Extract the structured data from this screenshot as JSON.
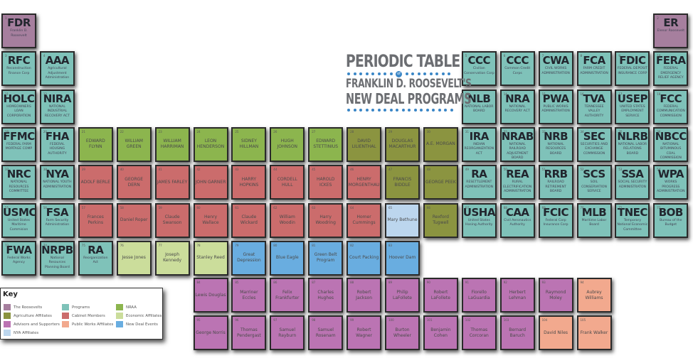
{
  "title": {
    "line1": "PERIODIC TABLE",
    "of": "of",
    "line2": "FRANKLIN D. ROOSEVELT'S",
    "line3": "NEW DEAL PROGRAMS"
  },
  "colors": {
    "roosevelts": "#a67f9e",
    "programs": "#7fc2b9",
    "nraa": "#8cb54e",
    "agriculture": "#8b9440",
    "cabinet": "#cb6c6c",
    "economic": "#cbdd9b",
    "advisors": "#bb74b3",
    "public_works": "#f2a98e",
    "events": "#69ade0",
    "nya": "#bcd6ee"
  },
  "key": {
    "title": "Key",
    "items": [
      {
        "label": "The Roosevelts",
        "color": "#a67f9e"
      },
      {
        "label": "Programs",
        "color": "#7fc2b9"
      },
      {
        "label": "NRAA",
        "color": "#8cb54e"
      },
      {
        "label": "Agriculture Affiliates",
        "color": "#8b9440"
      },
      {
        "label": "Cabinet Members",
        "color": "#cb6c6c"
      },
      {
        "label": "Economic Affiliates",
        "color": "#cbdd9b"
      },
      {
        "label": "Advisors and Supporters",
        "color": "#bb74b3"
      },
      {
        "label": "Public Works Affiliates",
        "color": "#f2a98e"
      },
      {
        "label": "New Deal Events",
        "color": "#69ade0"
      },
      {
        "label": "NYA Affiliates",
        "color": "#bcd6ee"
      }
    ]
  },
  "elements": [
    {
      "n": "1",
      "sym": "FDR",
      "sub": "Franklin D. Roosevelt",
      "cat": "roosevelts",
      "col": 0,
      "row": 0
    },
    {
      "n": "2",
      "sym": "ER",
      "sub": "Elenor Roosevelt",
      "cat": "roosevelts",
      "col": 17,
      "row": 0
    },
    {
      "n": "3",
      "sym": "RFC",
      "sub": "Reconstruction Finance Corp",
      "cat": "programs",
      "col": 0,
      "row": 1
    },
    {
      "n": "4",
      "sym": "AAA",
      "sub": "Agricultural Adjustment Administration",
      "cat": "programs",
      "col": 1,
      "row": 1
    },
    {
      "n": "5",
      "sym": "CCC",
      "sub": "Civilian Conservation Corp",
      "cat": "programs",
      "col": 12,
      "row": 1
    },
    {
      "n": "6",
      "sym": "CCC",
      "sub": "Common Credit Corps",
      "cat": "programs",
      "col": 13,
      "row": 1
    },
    {
      "n": "7",
      "sym": "CWA",
      "sub": "CIVIL WORKS ADMINISTRATION",
      "cat": "programs",
      "col": 14,
      "row": 1
    },
    {
      "n": "8",
      "sym": "FCA",
      "sub": "FARM CREDIT ADMINISTRATION",
      "cat": "programs",
      "col": 15,
      "row": 1
    },
    {
      "n": "9",
      "sym": "FDIC",
      "sub": "FEDERAL DEPOSIT INSURANCE CORP",
      "cat": "programs",
      "col": 16,
      "row": 1
    },
    {
      "n": "10",
      "sym": "FERA",
      "sub": "FEDERAL EMERGENCY RELIEF AGENCY",
      "cat": "programs",
      "col": 17,
      "row": 1
    },
    {
      "n": "11",
      "sym": "HOLC",
      "sub": "HOMEOWNERS LOAN CORPORATION",
      "cat": "programs",
      "col": 0,
      "row": 2
    },
    {
      "n": "12",
      "sym": "NIRA",
      "sub": "NATIONAL INDUSTRIAL RECOVERY ACT",
      "cat": "programs",
      "col": 1,
      "row": 2
    },
    {
      "n": "13",
      "sym": "NLB",
      "sub": "NATIONAL LABOR BOARD",
      "cat": "programs",
      "col": 12,
      "row": 2
    },
    {
      "n": "14",
      "sym": "NRA",
      "sub": "NATIONAL RECOVERY ACT",
      "cat": "programs",
      "col": 13,
      "row": 2
    },
    {
      "n": "15",
      "sym": "PWA",
      "sub": "PUBLIC WORKS ADMINISTRATION",
      "cat": "programs",
      "col": 14,
      "row": 2
    },
    {
      "n": "16",
      "sym": "TVA",
      "sub": "TENNESSEE VALLEY AUTHORITY",
      "cat": "programs",
      "col": 15,
      "row": 2
    },
    {
      "n": "17",
      "sym": "USEP",
      "sub": "UNITED STATES EMPLOYMENT SERVICE",
      "cat": "programs",
      "col": 16,
      "row": 2
    },
    {
      "n": "18",
      "sym": "FCC",
      "sub": "FEDERAL COMMUNICATION COMMISSION",
      "cat": "programs",
      "col": 17,
      "row": 2
    },
    {
      "n": "19",
      "sym": "FFMC",
      "sub": "FEDERAL FARM MORTAGE COMP",
      "cat": "programs",
      "col": 0,
      "row": 3
    },
    {
      "n": "20",
      "sym": "FHA",
      "sub": "FEDERAL HOUSING AUTHORITY",
      "cat": "programs",
      "col": 1,
      "row": 3
    },
    {
      "n": "21",
      "name": "EDWARD FLYNN",
      "cat": "nraa",
      "col": 2,
      "row": 3
    },
    {
      "n": "22",
      "name": "WILLIAM GREEN",
      "cat": "nraa",
      "col": 3,
      "row": 3
    },
    {
      "n": "23",
      "name": "WILLIAM HARRIMAN",
      "cat": "nraa",
      "col": 4,
      "row": 3
    },
    {
      "n": "24",
      "name": "LEON HENDERSON",
      "cat": "nraa",
      "col": 5,
      "row": 3
    },
    {
      "n": "25",
      "name": "SIDNEY HILLMAN",
      "cat": "nraa",
      "col": 6,
      "row": 3
    },
    {
      "n": "26",
      "name": "HUGH JOHNSON",
      "cat": "nraa",
      "col": 7,
      "row": 3
    },
    {
      "n": "27",
      "name": "EDWARD STETTINIUS",
      "cat": "nraa",
      "col": 8,
      "row": 3
    },
    {
      "n": "28",
      "name": "DAVID LILIENTHAL",
      "cat": "agriculture",
      "col": 9,
      "row": 3
    },
    {
      "n": "29",
      "name": "DOUGLAS MACARTHUR",
      "cat": "agriculture",
      "col": 10,
      "row": 3
    },
    {
      "n": "30",
      "name": "A.E. MORGAN",
      "cat": "agriculture",
      "col": 11,
      "row": 3
    },
    {
      "n": "31",
      "sym": "IRA",
      "sub": "INDIAN REORGANIZATION ACT",
      "cat": "programs",
      "col": 12,
      "row": 3
    },
    {
      "n": "32",
      "sym": "NRAB",
      "sub": "NATIONAL RAILROAD ADJUSTMENT BOARD",
      "cat": "programs",
      "col": 13,
      "row": 3
    },
    {
      "n": "33",
      "sym": "NRB",
      "sub": "NATIONAL RESOURCES BOARD",
      "cat": "programs",
      "col": 14,
      "row": 3
    },
    {
      "n": "34",
      "sym": "SEC",
      "sub": "SECURITIES AND EXCHANGE COMMISSION",
      "cat": "programs",
      "col": 15,
      "row": 3
    },
    {
      "n": "35",
      "sym": "NLRB",
      "sub": "NATIONAL LABOR RELATIONS BOARD",
      "cat": "programs",
      "col": 16,
      "row": 3
    },
    {
      "n": "36",
      "sym": "NBCC",
      "sub": "NATIONAL BITUMINOUS COAL COMMISSION",
      "cat": "programs",
      "col": 17,
      "row": 3
    },
    {
      "n": "37",
      "sym": "NRC",
      "sub": "NATIONAL RESOURCES COMMITTEE",
      "cat": "programs",
      "col": 0,
      "row": 4
    },
    {
      "n": "38",
      "sym": "NYA",
      "sub": "NATIONAL YOUTH ADMINISTRATION",
      "cat": "programs",
      "col": 1,
      "row": 4
    },
    {
      "n": "39",
      "name": "ADOLF BERLE",
      "cat": "cabinet",
      "col": 2,
      "row": 4
    },
    {
      "n": "40",
      "name": "GEORGE DERN",
      "cat": "cabinet",
      "col": 3,
      "row": 4
    },
    {
      "n": "41",
      "name": "JAMES FARLEY",
      "cat": "cabinet",
      "col": 4,
      "row": 4
    },
    {
      "n": "42",
      "name": "JOHN GARNER",
      "cat": "cabinet",
      "col": 5,
      "row": 4
    },
    {
      "n": "43",
      "name": "HARRY HOPKINS",
      "cat": "cabinet",
      "col": 6,
      "row": 4
    },
    {
      "n": "44",
      "name": "CORDELL HULL",
      "cat": "cabinet",
      "col": 7,
      "row": 4
    },
    {
      "n": "45",
      "name": "HAROLD ICKES",
      "cat": "cabinet",
      "col": 8,
      "row": 4
    },
    {
      "n": "46",
      "name": "HENRY MORGENTHAU",
      "cat": "cabinet",
      "col": 9,
      "row": 4
    },
    {
      "n": "47",
      "name": "FRANCIS BIDDLE",
      "cat": "agriculture",
      "col": 10,
      "row": 4
    },
    {
      "n": "48",
      "name": "GEORGE PEEK",
      "cat": "agriculture",
      "col": 11,
      "row": 4
    },
    {
      "n": "49",
      "sym": "RA",
      "sub": "RESETTLEMENT ADMINISTRATION",
      "cat": "programs",
      "col": 12,
      "row": 4
    },
    {
      "n": "50",
      "sym": "REA",
      "sub": "RURAL ELECTRIFICATION ADMINISTRATON",
      "cat": "programs",
      "col": 13,
      "row": 4
    },
    {
      "n": "51",
      "sym": "RRB",
      "sub": "RAILROAD RETIREMENT BOARD",
      "cat": "programs",
      "col": 14,
      "row": 4
    },
    {
      "n": "52",
      "sym": "SCS",
      "sub": "SOIL CONSERVATION SERVICE",
      "cat": "programs",
      "col": 15,
      "row": 4
    },
    {
      "n": "53",
      "sym": "SSA",
      "sub": "SOCIAL SECURITY ADMINISTRATON",
      "cat": "programs",
      "col": 16,
      "row": 4
    },
    {
      "n": "54",
      "sym": "WPA",
      "sub": "WORKS PROGRESS ADMINISTRATION",
      "cat": "programs",
      "col": 17,
      "row": 4
    },
    {
      "n": "55",
      "sym": "USMC",
      "sub": "United States Maritime Commision",
      "cat": "programs",
      "col": 0,
      "row": 5
    },
    {
      "n": "56",
      "sym": "FSA",
      "sub": "Farm Security Administration",
      "cat": "programs",
      "col": 1,
      "row": 5
    },
    {
      "n": "57",
      "name": "Frances Perkins",
      "cat": "cabinet",
      "col": 2,
      "row": 5
    },
    {
      "n": "58",
      "name": "Daniel Roper",
      "cat": "cabinet",
      "col": 3,
      "row": 5
    },
    {
      "n": "59",
      "name": "Claude Swanson",
      "cat": "cabinet",
      "col": 4,
      "row": 5
    },
    {
      "n": "60",
      "name": "Henry Wallace",
      "cat": "cabinet",
      "col": 5,
      "row": 5
    },
    {
      "n": "61",
      "name": "Claude Wickard",
      "cat": "cabinet",
      "col": 6,
      "row": 5
    },
    {
      "n": "62",
      "name": "William Woodin",
      "cat": "cabinet",
      "col": 7,
      "row": 5
    },
    {
      "n": "63",
      "name": "Harry Woodring",
      "cat": "cabinet",
      "col": 8,
      "row": 5
    },
    {
      "n": "64",
      "name": "Homer Cummings",
      "cat": "cabinet",
      "col": 9,
      "row": 5
    },
    {
      "n": "65",
      "name": "Mary Bethune",
      "cat": "nya",
      "col": 10,
      "row": 5
    },
    {
      "n": "66",
      "name": "Rexford Tugwell",
      "cat": "agriculture",
      "col": 11,
      "row": 5
    },
    {
      "n": "67",
      "sym": "USHA",
      "sub": "United States Hosing Authority",
      "cat": "programs",
      "col": 12,
      "row": 5
    },
    {
      "n": "68",
      "sym": "CAA",
      "sub": "Civil Aeronautics Authority",
      "cat": "programs",
      "col": 13,
      "row": 5
    },
    {
      "n": "69",
      "sym": "FCIC",
      "sub": "Federal Corp Insurance Corp",
      "cat": "programs",
      "col": 14,
      "row": 5
    },
    {
      "n": "70",
      "sym": "MLB",
      "sub": "Maritime Labor Board",
      "cat": "programs",
      "col": 15,
      "row": 5
    },
    {
      "n": "71",
      "sym": "TNEC",
      "sub": "Temporary National Economic Committee",
      "cat": "programs",
      "col": 16,
      "row": 5
    },
    {
      "n": "72",
      "sym": "BOB",
      "sub": "Bureau of the Budget",
      "cat": "programs",
      "col": 17,
      "row": 5
    },
    {
      "n": "73",
      "sym": "FWA",
      "sub": "Federal Works Agency",
      "cat": "programs",
      "col": 0,
      "row": 6
    },
    {
      "n": "74",
      "sym": "NRPB",
      "sub": "National Resources Planning Board",
      "cat": "programs",
      "col": 1,
      "row": 6
    },
    {
      "n": "75",
      "sym": "RA",
      "sub": "Reorganization Act",
      "cat": "programs",
      "col": 2,
      "row": 6
    },
    {
      "n": "76",
      "name": "Jesse Jones",
      "cat": "economic",
      "col": 3,
      "row": 6
    },
    {
      "n": "77",
      "name": "Joseph Kennedy",
      "cat": "economic",
      "col": 4,
      "row": 6
    },
    {
      "n": "78",
      "name": "Stanley Reed",
      "cat": "economic",
      "col": 5,
      "row": 6
    },
    {
      "n": "79",
      "name": "Great Depression",
      "cat": "events",
      "col": 6,
      "row": 6
    },
    {
      "n": "80",
      "name": "Blue Eagle",
      "cat": "events",
      "col": 7,
      "row": 6
    },
    {
      "n": "81",
      "name": "Green Belt Program",
      "cat": "events",
      "col": 8,
      "row": 6
    },
    {
      "n": "82",
      "name": "Court Packing",
      "cat": "events",
      "col": 9,
      "row": 6
    },
    {
      "n": "83",
      "name": "Hoover Dam",
      "cat": "events",
      "col": 10,
      "row": 6
    },
    {
      "n": "84",
      "name": "Lewis Douglas",
      "cat": "advisors",
      "col": 5,
      "row": 7
    },
    {
      "n": "85",
      "name": "Marriner Eccles",
      "cat": "advisors",
      "col": 6,
      "row": 7
    },
    {
      "n": "86",
      "name": "Felix Frankfurter",
      "cat": "advisors",
      "col": 7,
      "row": 7
    },
    {
      "n": "87",
      "name": "Charles Hughes",
      "cat": "advisors",
      "col": 8,
      "row": 7
    },
    {
      "n": "88",
      "name": "Robert Jackson",
      "cat": "advisors",
      "col": 9,
      "row": 7
    },
    {
      "n": "89",
      "name": "Philip LaFollete",
      "cat": "advisors",
      "col": 10,
      "row": 7
    },
    {
      "n": "90",
      "name": "Robert LaFollete",
      "cat": "advisors",
      "col": 11,
      "row": 7
    },
    {
      "n": "91",
      "name": "Fiorello LaGuardia",
      "cat": "advisors",
      "col": 12,
      "row": 7
    },
    {
      "n": "92",
      "name": "Herbert Lehman",
      "cat": "advisors",
      "col": 13,
      "row": 7
    },
    {
      "n": "93",
      "name": "Raymond Moley",
      "cat": "advisors",
      "col": 14,
      "row": 7
    },
    {
      "n": "94",
      "name": "Aubrey Williams",
      "cat": "public_works",
      "col": 15,
      "row": 7
    },
    {
      "n": "95",
      "name": "George Norris",
      "cat": "advisors",
      "col": 5,
      "row": 8
    },
    {
      "n": "96",
      "name": "Thomas Pendergast",
      "cat": "advisors",
      "col": 6,
      "row": 8
    },
    {
      "n": "97",
      "name": "Samuel Rayburn",
      "cat": "advisors",
      "col": 7,
      "row": 8
    },
    {
      "n": "98",
      "name": "Samuel Rosenam",
      "cat": "advisors",
      "col": 8,
      "row": 8
    },
    {
      "n": "99",
      "name": "Robert Wagner",
      "cat": "advisors",
      "col": 9,
      "row": 8
    },
    {
      "n": "100",
      "name": "Burton Wheeler",
      "cat": "advisors",
      "col": 10,
      "row": 8
    },
    {
      "n": "101",
      "name": "Benjamin Cohen",
      "cat": "advisors",
      "col": 11,
      "row": 8
    },
    {
      "n": "102",
      "name": "Thomas Corcoran",
      "cat": "advisors",
      "col": 12,
      "row": 8
    },
    {
      "n": "103",
      "name": "Bernard Baruch",
      "cat": "advisors",
      "col": 13,
      "row": 8
    },
    {
      "n": "104",
      "name": "David Niles",
      "cat": "public_works",
      "col": 14,
      "row": 8
    },
    {
      "n": "105",
      "name": "Frank Walker",
      "cat": "public_works",
      "col": 15,
      "row": 8
    }
  ]
}
